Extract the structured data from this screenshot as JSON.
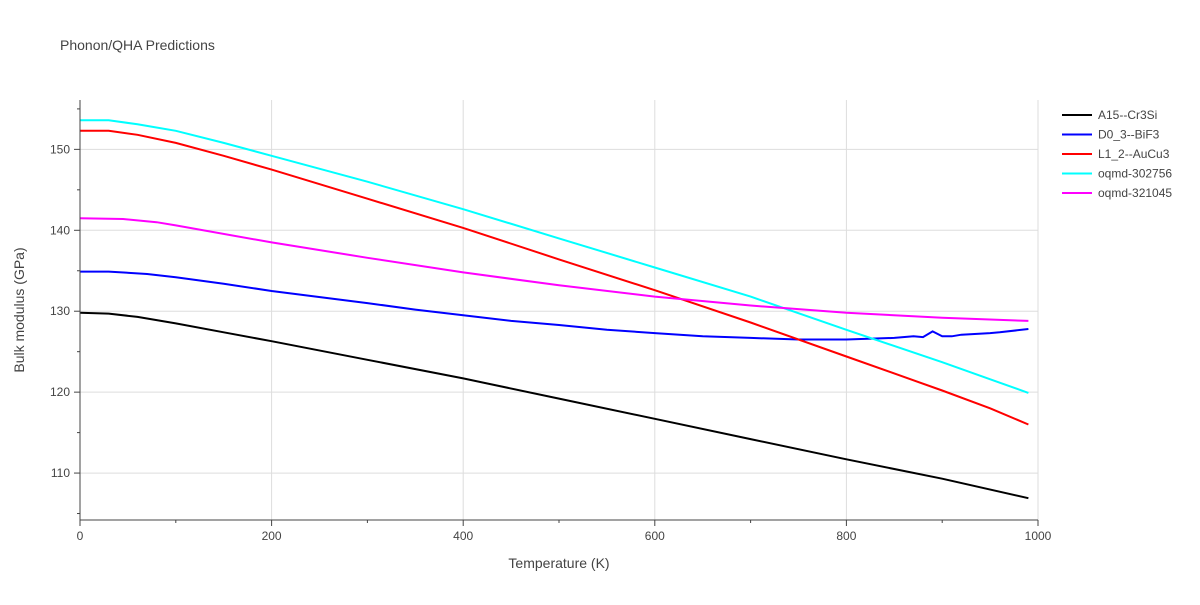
{
  "chart_data": {
    "type": "line",
    "title": "Phonon/QHA Predictions",
    "xlabel": "Temperature (K)",
    "ylabel": "Bulk modulus (GPa)",
    "xlim": [
      0,
      1000
    ],
    "ylim": [
      104.2,
      156.1
    ],
    "xticks": [
      0,
      200,
      400,
      600,
      800,
      1000
    ],
    "yticks": [
      110,
      120,
      130,
      140,
      150
    ],
    "grid": true,
    "legend_position": "right",
    "series": [
      {
        "name": "A15--Cr3Si",
        "color": "#000000",
        "x": [
          0,
          30,
          60,
          100,
          150,
          200,
          300,
          400,
          500,
          600,
          700,
          800,
          900,
          990
        ],
        "y": [
          129.8,
          129.7,
          129.3,
          128.5,
          127.4,
          126.3,
          124.0,
          121.7,
          119.2,
          116.7,
          114.2,
          111.7,
          109.3,
          106.9
        ]
      },
      {
        "name": "D0_3--BiF3",
        "color": "#0000ff",
        "x": [
          0,
          30,
          70,
          100,
          150,
          200,
          300,
          350,
          400,
          450,
          500,
          550,
          600,
          650,
          700,
          750,
          800,
          850,
          870,
          880,
          890,
          900,
          910,
          920,
          950,
          960,
          990
        ],
        "y": [
          134.9,
          134.9,
          134.6,
          134.2,
          133.4,
          132.5,
          131.0,
          130.2,
          129.5,
          128.8,
          128.3,
          127.7,
          127.3,
          126.9,
          126.7,
          126.5,
          126.5,
          126.7,
          126.9,
          126.8,
          127.5,
          126.9,
          126.9,
          127.1,
          127.3,
          127.4,
          127.8
        ]
      },
      {
        "name": "L1_2--AuCu3",
        "color": "#ff0000",
        "x": [
          0,
          30,
          60,
          100,
          150,
          200,
          300,
          400,
          500,
          600,
          700,
          800,
          900,
          950,
          990
        ],
        "y": [
          152.3,
          152.3,
          151.8,
          150.8,
          149.2,
          147.5,
          143.9,
          140.3,
          136.4,
          132.6,
          128.6,
          124.4,
          120.2,
          118.0,
          116.0
        ]
      },
      {
        "name": "oqmd-302756",
        "color": "#00ffff",
        "x": [
          0,
          30,
          60,
          100,
          150,
          200,
          300,
          400,
          500,
          600,
          700,
          800,
          900,
          990
        ],
        "y": [
          153.6,
          153.6,
          153.1,
          152.3,
          150.8,
          149.2,
          146.0,
          142.6,
          139.0,
          135.4,
          131.8,
          127.7,
          123.7,
          119.9
        ]
      },
      {
        "name": "oqmd-321045",
        "color": "#ff00ff",
        "x": [
          0,
          45,
          80,
          100,
          200,
          300,
          400,
          500,
          600,
          700,
          800,
          900,
          990
        ],
        "y": [
          141.5,
          141.4,
          141.0,
          140.6,
          138.5,
          136.6,
          134.8,
          133.2,
          131.8,
          130.7,
          129.8,
          129.2,
          128.8
        ]
      }
    ]
  }
}
